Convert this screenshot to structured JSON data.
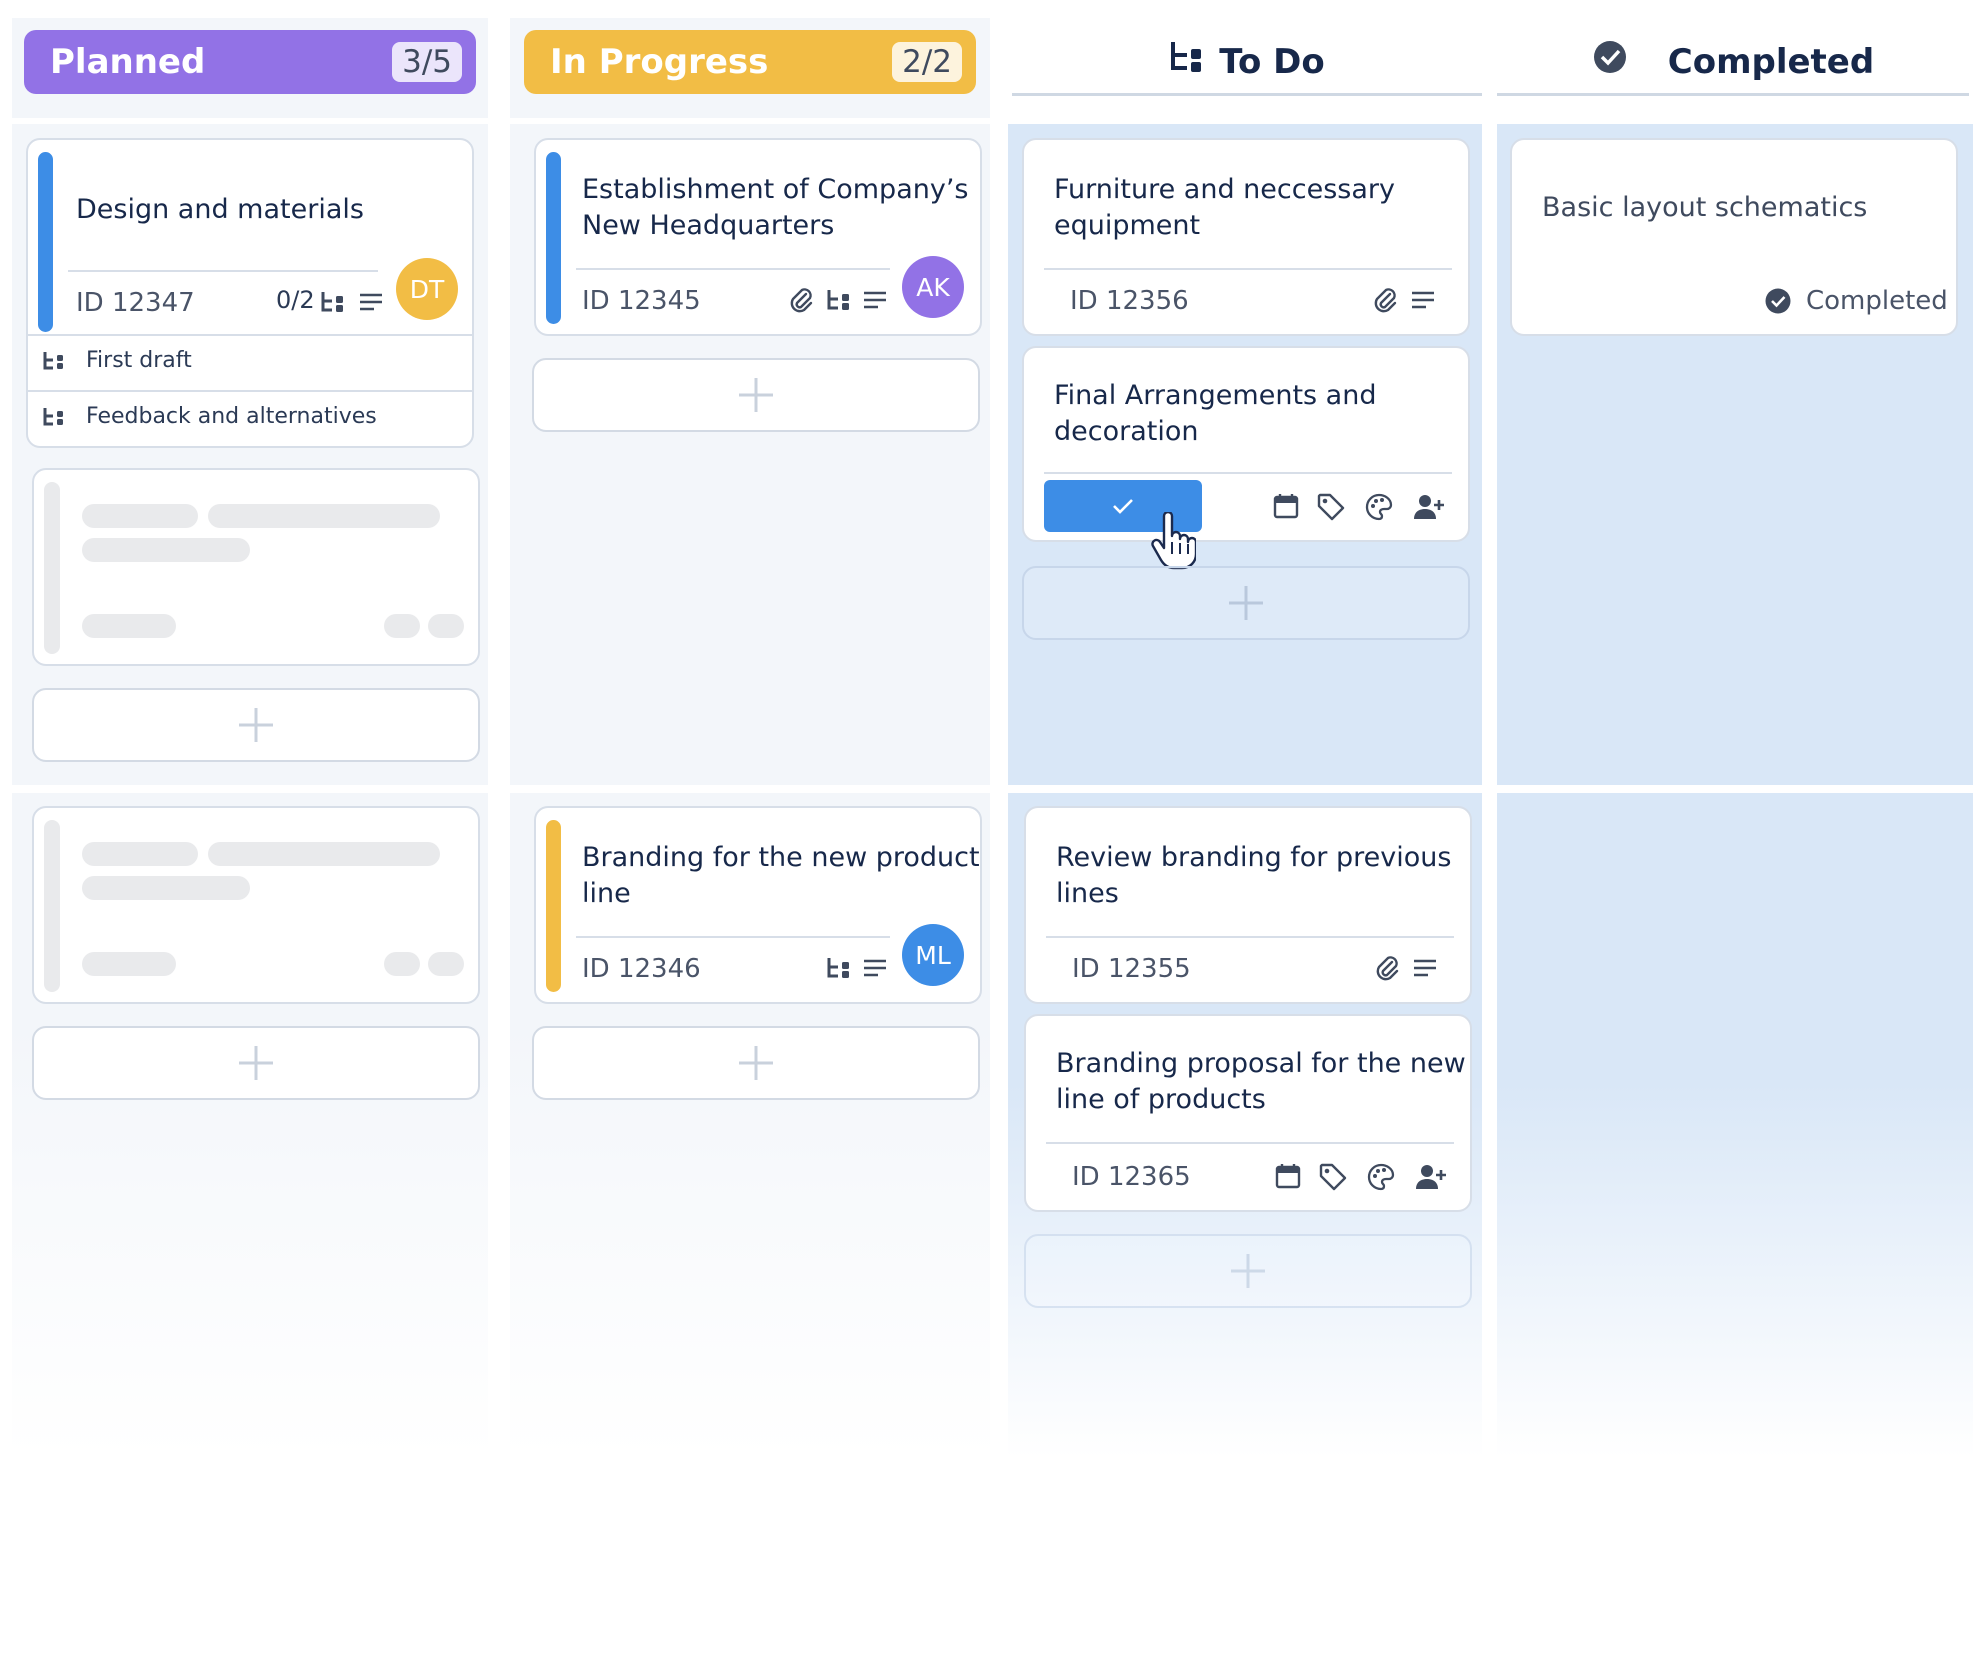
{
  "columns": [
    {
      "id": "planned",
      "title": "Planned",
      "count": "3/5",
      "color": "#9272e6"
    },
    {
      "id": "in_progress",
      "title": "In Progress",
      "count": "2/2",
      "color": "#f2bd45"
    },
    {
      "id": "todo",
      "title": "To Do",
      "icon": "subtask-icon"
    },
    {
      "id": "completed",
      "title": "Completed",
      "icon": "check-circle-icon"
    }
  ],
  "cards": {
    "design": {
      "title": "Design and materials",
      "id": "ID 12347",
      "subtask_count": "0/2",
      "assignee": "DT",
      "assignee_color": "#f2bd45",
      "bar_color": "#3d8de6",
      "subtasks": [
        "First draft",
        "Feedback and alternatives"
      ]
    },
    "headquarters": {
      "title_line1": "Establishment of Company’s",
      "title_line2": "New Headquarters",
      "id": "ID 12345",
      "assignee": "AK",
      "assignee_color": "#9272e6",
      "bar_color": "#3d8de6"
    },
    "branding_new": {
      "title_line1": "Branding for the new product",
      "title_line2": "line",
      "id": "ID 12346",
      "assignee": "ML",
      "assignee_color": "#3d8de6",
      "bar_color": "#f2bd45"
    },
    "furniture": {
      "title_line1": "Furniture and neccessary",
      "title_line2": "equipment",
      "id": "ID 12356"
    },
    "final": {
      "title_line1": "Final Arrangements and",
      "title_line2": "decoration"
    },
    "review": {
      "title_line1": "Review branding for previous",
      "title_line2": "lines",
      "id": "ID 12355"
    },
    "proposal": {
      "title_line1": "Branding proposal for the new",
      "title_line2": "line of products",
      "id": "ID 12365"
    },
    "basic": {
      "title": "Basic layout schematics",
      "status": "Completed"
    }
  },
  "colors": {
    "accent": "#3d8de6",
    "text": "#17284a",
    "muted": "#4a5468",
    "border": "#d7dee8"
  }
}
